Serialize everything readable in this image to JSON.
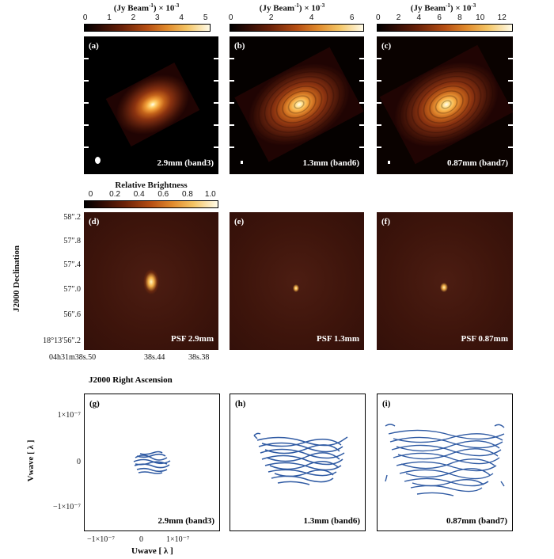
{
  "colorbars": [
    {
      "title": "(Jy Beam",
      "exp": "-1",
      "suffix": ") × 10",
      "pow": "-3",
      "ticks": [
        "0",
        "1",
        "2",
        "3",
        "4",
        "5"
      ]
    },
    {
      "title": "(Jy Beam",
      "exp": "-1",
      "suffix": ") × 10",
      "pow": "-3",
      "ticks": [
        "0",
        "2",
        "4",
        "6"
      ]
    },
    {
      "title": "(Jy Beam",
      "exp": "-1",
      "suffix": ") × 10",
      "pow": "-3",
      "ticks": [
        "0",
        "2",
        "4",
        "6",
        "8",
        "10",
        "12"
      ]
    }
  ],
  "psf_colorbar": {
    "title": "Relative Brightness",
    "ticks": [
      "0",
      "0.2",
      "0.4",
      "0.6",
      "0.8",
      "1.0"
    ]
  },
  "row1": [
    {
      "letter": "(a)",
      "label": "2.9mm (band3)"
    },
    {
      "letter": "(b)",
      "label": "1.3mm (band6)"
    },
    {
      "letter": "(c)",
      "label": "0.87mm (band7)"
    }
  ],
  "row2": [
    {
      "letter": "(d)",
      "label": "PSF 2.9mm"
    },
    {
      "letter": "(e)",
      "label": "PSF 1.3mm"
    },
    {
      "letter": "(f)",
      "label": "PSF 0.87mm"
    }
  ],
  "dec_axis": {
    "label": "J2000  Declination",
    "ticks": [
      "58″.2",
      "57″.8",
      "57″.4",
      "57″.0",
      "56″.6",
      "18°13′56″.2"
    ]
  },
  "ra_axis": {
    "label": "J2000  Right Ascension",
    "ticks": [
      "04h31m38s.50",
      "38s.44",
      "38s.38"
    ]
  },
  "row3": [
    {
      "letter": "(g)",
      "label": "2.9mm (band3)"
    },
    {
      "letter": "(h)",
      "label": "1.3mm (band6)"
    },
    {
      "letter": "(i)",
      "label": "0.87mm (band7)"
    }
  ],
  "v_axis": {
    "label": "Vwave [ λ ]",
    "ticks": [
      "1×10⁻⁷",
      "0",
      "−1×10⁻⁷"
    ]
  },
  "u_axis": {
    "label": "Uwave [ λ ]",
    "ticks": [
      "−1×10⁻⁷",
      "0",
      "1×10⁻⁷"
    ]
  },
  "colors": {
    "uv": "#2f5aa3",
    "frame": "#000000"
  }
}
